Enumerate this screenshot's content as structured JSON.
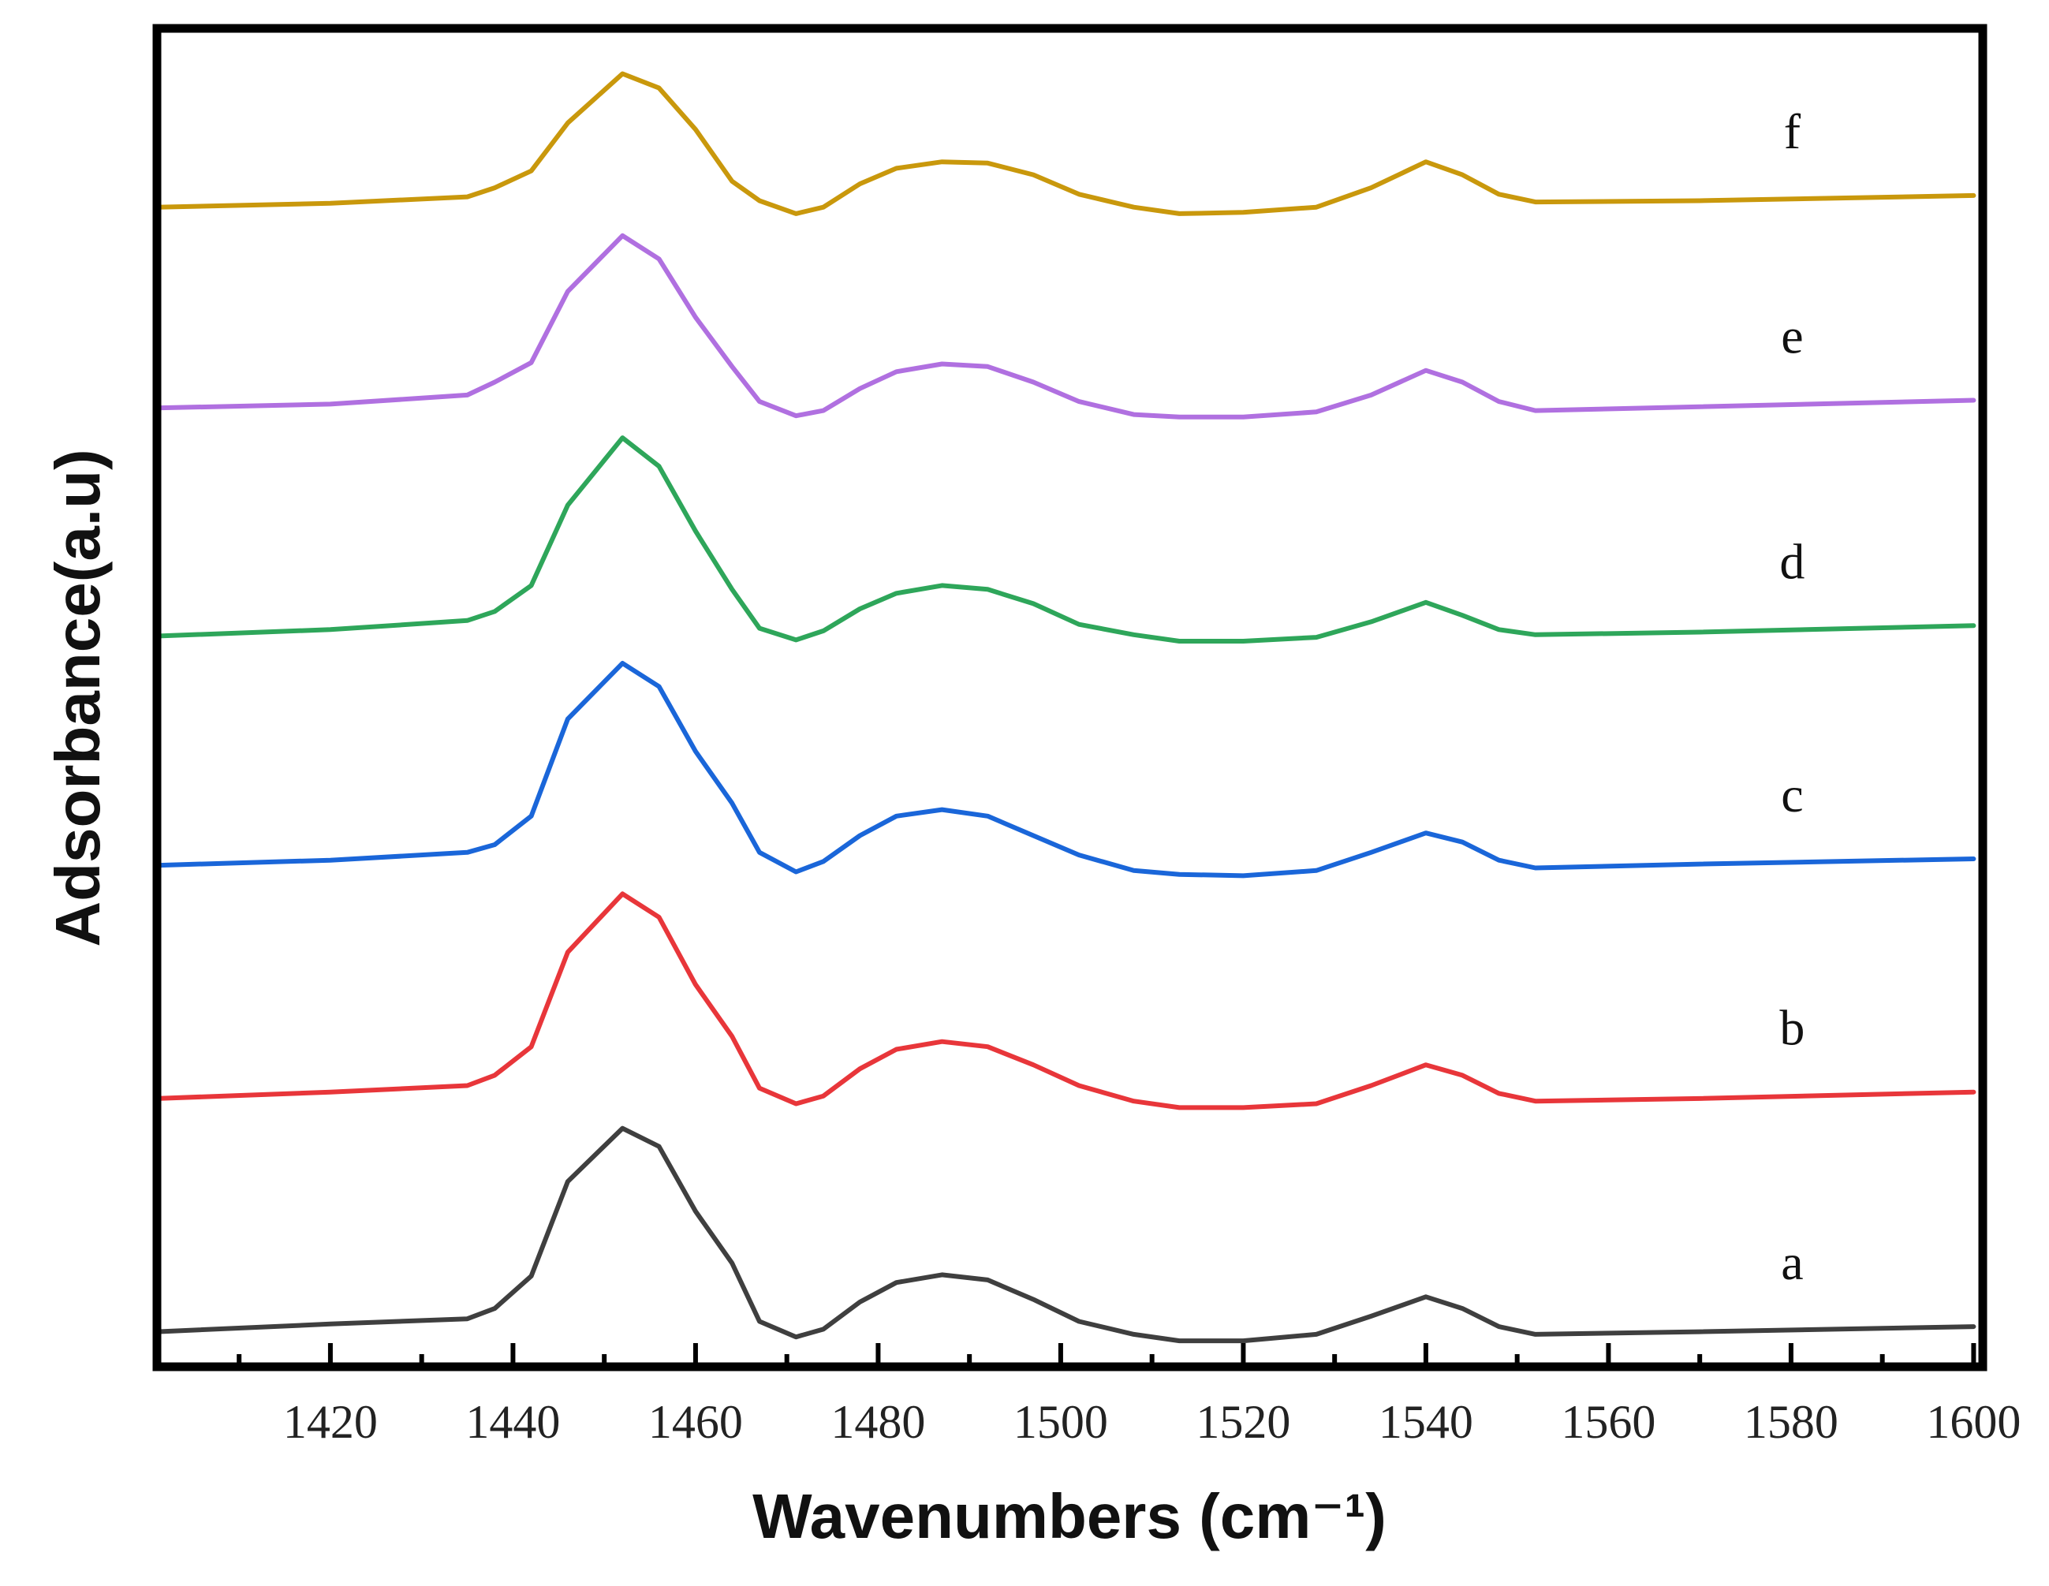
{
  "chart_data": {
    "type": "line",
    "xlabel": "Wavenumbers (cm⁻¹)",
    "ylabel": "Adsorbance(a.u)",
    "xlim": [
      1401,
      1601
    ],
    "xticks": [
      1420,
      1440,
      1460,
      1480,
      1500,
      1520,
      1540,
      1560,
      1580,
      1600
    ],
    "xminor_ticks": [
      1410,
      1430,
      1450,
      1470,
      1490,
      1510,
      1530,
      1550,
      1570,
      1590
    ],
    "ylim": [
      0,
      1033
    ],
    "x": [
      1401,
      1420,
      1435,
      1438,
      1442,
      1446,
      1452,
      1456,
      1460,
      1464,
      1467,
      1471,
      1474,
      1478,
      1482,
      1487,
      1492,
      1497,
      1502,
      1508,
      1513,
      1520,
      1528,
      1534,
      1540,
      1544,
      1548,
      1552,
      1570,
      1600
    ],
    "series": [
      {
        "name": "a",
        "color": "#3f3f3f",
        "values": [
          27,
          33,
          37,
          45,
          70,
          143,
          184,
          170,
          120,
          80,
          35,
          23,
          29,
          50,
          65,
          71,
          67,
          52,
          35,
          25,
          20,
          20,
          25,
          39,
          54,
          45,
          31,
          25,
          27,
          31
        ]
      },
      {
        "name": "b",
        "color": "#e8363a",
        "values": [
          207,
          212,
          217,
          225,
          247,
          320,
          365,
          347,
          295,
          255,
          215,
          203,
          209,
          230,
          245,
          251,
          247,
          233,
          217,
          205,
          200,
          200,
          203,
          217,
          233,
          225,
          211,
          205,
          207,
          212
        ]
      },
      {
        "name": "c",
        "color": "#1a66d9",
        "values": [
          387,
          391,
          397,
          403,
          425,
          500,
          543,
          525,
          475,
          435,
          397,
          382,
          390,
          410,
          425,
          430,
          425,
          410,
          395,
          383,
          380,
          379,
          383,
          397,
          412,
          405,
          391,
          385,
          388,
          392
        ]
      },
      {
        "name": "d",
        "color": "#2ea65a",
        "values": [
          564,
          569,
          576,
          583,
          603,
          665,
          717,
          695,
          645,
          600,
          570,
          561,
          568,
          585,
          597,
          603,
          600,
          589,
          573,
          565,
          560,
          560,
          563,
          575,
          590,
          580,
          569,
          565,
          567,
          572
        ]
      },
      {
        "name": "e",
        "color": "#b070e0",
        "values": [
          740,
          743,
          750,
          760,
          775,
          830,
          873,
          855,
          810,
          772,
          745,
          734,
          738,
          755,
          768,
          774,
          772,
          760,
          745,
          735,
          733,
          733,
          737,
          750,
          769,
          760,
          745,
          738,
          741,
          746
        ]
      },
      {
        "name": "f",
        "color": "#c9980c",
        "values": [
          895,
          898,
          903,
          910,
          923,
          960,
          998,
          987,
          955,
          915,
          900,
          890,
          895,
          913,
          925,
          930,
          929,
          920,
          905,
          895,
          890,
          891,
          895,
          910,
          930,
          920,
          905,
          899,
          900,
          904
        ]
      }
    ]
  }
}
